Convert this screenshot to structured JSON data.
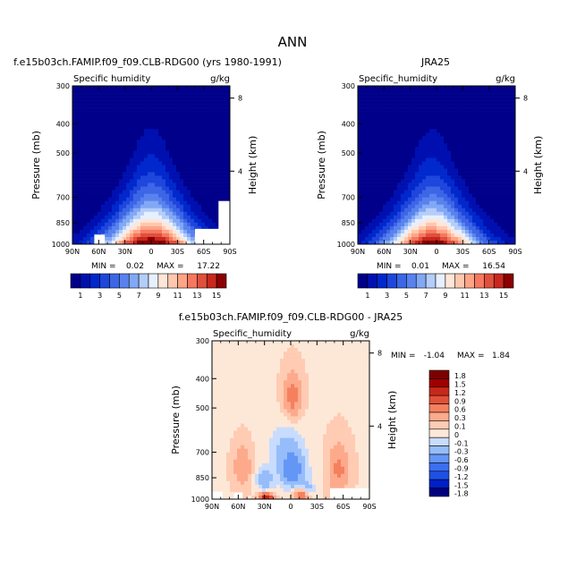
{
  "page": {
    "title": "ANN"
  },
  "colors": {
    "base_levels": [
      "#00008b",
      "#0010b0",
      "#0028cc",
      "#1e46dc",
      "#3c66e6",
      "#5a82ee",
      "#82a8f5",
      "#b4cdfa",
      "#e6f0ff",
      "#ffe6d7",
      "#ffc8ae",
      "#ffa487",
      "#f57860",
      "#e0503c",
      "#c8281e",
      "#8c0000"
    ],
    "diff_levels": [
      "#000080",
      "#0020c8",
      "#1e50e6",
      "#3c6ef0",
      "#6496f5",
      "#96bcfa",
      "#c8dcff",
      "#fde8d8",
      "#ffcbb3",
      "#fdaa8c",
      "#f5805e",
      "#e25038",
      "#c82818",
      "#a00000",
      "#7d0000"
    ]
  },
  "chart_data": [
    {
      "type": "heatmap",
      "panel": "model",
      "title": "f.e15b03ch.FAMIP.f09_f09.CLB-RDG00 (yrs 1980-1991)",
      "left_label": "Specific humidity",
      "right_label": "g/kg",
      "ylabel": "Pressure (mb)",
      "ylabel_right": "Height (km)",
      "xticks": [
        "90N",
        "60N",
        "30N",
        "0",
        "30S",
        "60S",
        "90S"
      ],
      "yticks": [
        "300",
        "400",
        "500",
        "700",
        "850",
        "1000"
      ],
      "yticks_right": [
        "8",
        "4"
      ],
      "x_range": [
        90,
        -90
      ],
      "y_range": [
        300,
        1000
      ],
      "y_scale": "log",
      "min_label": "MIN =",
      "min_value": "0.02",
      "max_label": "MAX =",
      "max_value": "17.22",
      "min": 0.02,
      "max": 17.22,
      "peak_lat": 0,
      "masked_regions": [
        {
          "lat0": 65,
          "lat1": 53,
          "p0": 930,
          "p1": 1000
        },
        {
          "lat0": -50,
          "lat1": -90,
          "p0": 890,
          "p1": 1000
        },
        {
          "lat0": -77,
          "lat1": -90,
          "p0": 720,
          "p1": 1000
        }
      ]
    },
    {
      "type": "heatmap",
      "panel": "obs",
      "title": "JRA25",
      "left_label": "Specific_humidity",
      "right_label": "g/kg",
      "ylabel": "Pressure (mb)",
      "ylabel_right": "Height (km)",
      "xticks": [
        "90N",
        "60N",
        "30N",
        "0",
        "30S",
        "60S",
        "90S"
      ],
      "yticks": [
        "300",
        "400",
        "500",
        "700",
        "850",
        "1000"
      ],
      "yticks_right": [
        "8",
        "4"
      ],
      "x_range": [
        90,
        -90
      ],
      "y_range": [
        300,
        1000
      ],
      "y_scale": "log",
      "min_label": "MIN =",
      "min_value": "0.01",
      "max_label": "MAX =",
      "max_value": "16.54",
      "min": 0.01,
      "max": 16.54,
      "peak_lat": 5,
      "masked_regions": []
    },
    {
      "type": "heatmap",
      "panel": "diff",
      "title": "f.e15b03ch.FAMIP.f09_f09.CLB-RDG00 - JRA25",
      "left_label": "Specific_humidity",
      "right_label": "g/kg",
      "ylabel": "Pressure (mb)",
      "ylabel_right": "Height (km)",
      "xticks": [
        "90N",
        "60N",
        "30N",
        "0",
        "30S",
        "60S",
        "90S"
      ],
      "yticks": [
        "300",
        "400",
        "500",
        "700",
        "850",
        "1000"
      ],
      "yticks_right": [
        "8",
        "4"
      ],
      "x_range": [
        90,
        -90
      ],
      "y_range": [
        300,
        1000
      ],
      "y_scale": "log",
      "min_label": "MIN =",
      "min_value": "-1.04",
      "max_label": "MAX =",
      "max_value": "1.84",
      "min": -1.04,
      "max": 1.84,
      "features": [
        {
          "lat": -2,
          "p": 460,
          "value": 0.7,
          "lat_width": 10,
          "p_width": 80
        },
        {
          "lat": 55,
          "p": 780,
          "value": 0.5,
          "lat_width": 10,
          "p_width": 120
        },
        {
          "lat": -55,
          "p": 800,
          "value": 0.6,
          "lat_width": 12,
          "p_width": 150
        },
        {
          "lat": -2,
          "p": 810,
          "value": -0.9,
          "lat_width": 16,
          "p_width": 110
        },
        {
          "lat": 5,
          "p": 660,
          "value": -0.4,
          "lat_width": 20,
          "p_width": 110
        },
        {
          "lat": 30,
          "p": 860,
          "value": -0.6,
          "lat_width": 10,
          "p_width": 80
        },
        {
          "lat": 28,
          "p": 985,
          "value": 1.5,
          "lat_width": 8,
          "p_width": 30
        },
        {
          "lat": -12,
          "p": 965,
          "value": 0.9,
          "lat_width": 8,
          "p_width": 40
        },
        {
          "lat": -20,
          "p": 920,
          "value": -0.4,
          "lat_width": 8,
          "p_width": 50
        }
      ],
      "masked_regions": [
        {
          "lat0": 90,
          "lat1": 78,
          "p0": 945,
          "p1": 1000
        },
        {
          "lat0": 65,
          "lat1": 55,
          "p0": 950,
          "p1": 1000
        },
        {
          "lat0": -45,
          "lat1": -90,
          "p0": 920,
          "p1": 1000
        }
      ]
    }
  ],
  "colorbars": [
    {
      "name": "base",
      "labels": [
        "1",
        "3",
        "5",
        "7",
        "9",
        "11",
        "13",
        "15"
      ]
    },
    {
      "name": "diff",
      "labels": [
        "1.8",
        "1.5",
        "1.2",
        "0.9",
        "0.6",
        "0.3",
        "0.1",
        "0",
        "-0.1",
        "-0.3",
        "-0.6",
        "-0.9",
        "-1.2",
        "-1.5",
        "-1.8"
      ]
    }
  ]
}
